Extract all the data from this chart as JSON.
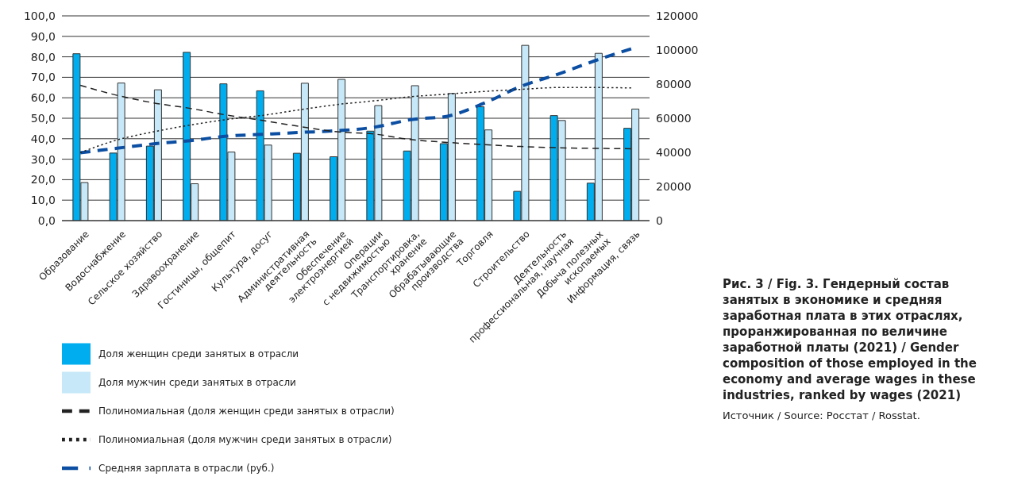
{
  "chart_data": {
    "type": "bar",
    "title": "Рис. 3 / Fig. 3. Гендерный состав занятых в экономике и средняя заработная плата в этих отраслях, проранжированная по величине заработной платы (2021) / Gender composition of those employed in the economy and average wages in these industries, ranked by wages (2021)",
    "annotations": [
      "Источник / Source: Росстат / Rosstat."
    ],
    "categories": [
      "Образование",
      "Водоснабжение",
      "Сельское хозяйство",
      "Здравоохранение",
      "Гостиницы, общепит",
      "Культура, досуг",
      "Административная\nдеятельность",
      "Обеспечение\nэлектроэнергией",
      "Операции\nс недвижимостью",
      "Транспортировка,\nхранение",
      "Обрабатывающие\nпроизводства",
      "Торговля",
      "Строительство",
      "Деятельность\nпрофессиональная, научная",
      "Добыча полезных\nископаемых",
      "Информация, связь"
    ],
    "series": [
      {
        "name": "Доля женщин среди занятых в отрасли",
        "color": "#00aeef",
        "values": [
          81.5,
          33.0,
          36.4,
          82.2,
          66.8,
          63.4,
          32.9,
          31.2,
          43.7,
          34.0,
          37.6,
          55.6,
          14.3,
          51.3,
          18.3,
          45.1
        ]
      },
      {
        "name": "Полиномиальная (доля женщин среди занятых в отрасли)",
        "type": "line",
        "color": "#222222",
        "line_style": "dashed",
        "values": [
          66.1,
          61.2,
          57.5,
          54.8,
          51.5,
          48.8,
          45.9,
          43.4,
          42.3,
          39.6,
          38.2,
          37.1,
          36.2,
          35.6,
          35.3,
          35.1
        ]
      },
      {
        "name": "Доля мужчин среди занятых в отрасли",
        "color": "#c6e8f8",
        "values": [
          18.6,
          67.2,
          63.9,
          18.0,
          33.5,
          36.9,
          67.1,
          69.0,
          56.2,
          65.9,
          62.1,
          44.3,
          85.6,
          48.9,
          81.7,
          54.5
        ]
      },
      {
        "name": "Полиномиальная (доля мужчин среди занятых в отрасли)",
        "type": "line",
        "color": "#222222",
        "line_style": "dotted",
        "values": [
          33.2,
          39.4,
          43.4,
          46.7,
          49.4,
          51.5,
          54.2,
          56.7,
          58.5,
          60.5,
          61.8,
          63.1,
          64.1,
          65.0,
          65.0,
          64.8
        ]
      },
      {
        "name": "Средняя зарплата в отрасли (руб.)",
        "type": "line",
        "axis": "y2",
        "color": "#0b4ea2",
        "line_style": "dashed",
        "values": [
          39800,
          42400,
          45000,
          46900,
          49500,
          50600,
          51700,
          52700,
          54700,
          59200,
          61200,
          68900,
          78700,
          85800,
          93600,
          100700
        ]
      }
    ],
    "ylim": [
      0,
      100
    ],
    "yticks": [
      {
        "value": 0,
        "label": "0,0"
      },
      {
        "value": 10,
        "label": "10,0"
      },
      {
        "value": 20,
        "label": "20,0"
      },
      {
        "value": 30,
        "label": "30,0"
      },
      {
        "value": 40,
        "label": "40,0"
      },
      {
        "value": 50,
        "label": "50,0"
      },
      {
        "value": 60,
        "label": "60,0"
      },
      {
        "value": 70,
        "label": "70,0"
      },
      {
        "value": 80,
        "label": "80,0"
      },
      {
        "value": 90,
        "label": "90,0"
      },
      {
        "value": 100,
        "label": "100,0"
      }
    ],
    "y2lim": [
      0,
      120000
    ],
    "y2ticks": [
      0,
      20000,
      40000,
      60000,
      80000,
      100000,
      120000
    ],
    "grid": "y",
    "legend": "bottom",
    "marker": "none"
  }
}
